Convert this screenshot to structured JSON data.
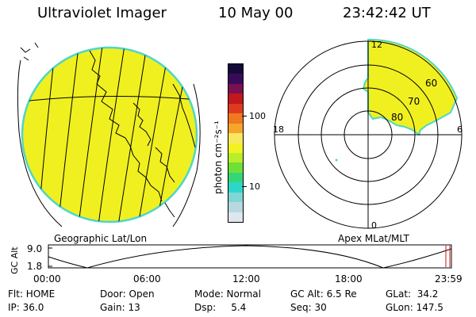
{
  "header": {
    "title": "Ultraviolet Imager",
    "date": "10 May 00",
    "time": "23:42:42 UT"
  },
  "colorbar": {
    "unit_label": "photon cm⁻²s⁻¹",
    "tick_100": "100",
    "tick_10": "10",
    "colors": [
      "#dfe7ee",
      "#b8d8e0",
      "#7fd6d6",
      "#2cd6c8",
      "#35d67a",
      "#6fe035",
      "#b8ee2a",
      "#f2f222",
      "#f7e860",
      "#f7a52a",
      "#f0781e",
      "#e03a1e",
      "#c0181e",
      "#7a1050",
      "#3a0a5a",
      "#140a3a"
    ]
  },
  "polar": {
    "labels": {
      "top": "12",
      "bottom": "0",
      "left": "18",
      "right": "6",
      "r60": "60",
      "r70": "70",
      "r80": "80"
    }
  },
  "maps": {
    "geo_label": "Geographic Lat/Lon",
    "apex_label": "Apex MLat/MLT",
    "fill_color": "#f0f020",
    "edge_color": "#4fd6c8"
  },
  "timeline": {
    "ylabel": "GC Alt",
    "ytick_top": "9.0",
    "ytick_bottom": "1.8",
    "xticks": [
      "00:00",
      "06:00",
      "12:00",
      "18:00",
      "23:59"
    ],
    "marker_color": "#d01010"
  },
  "status": {
    "filter": "Flt: HOME",
    "ip": "IP: 36.0",
    "door": "Door: Open",
    "gain": "Gain: 13",
    "mode": "Mode: Normal",
    "dsp": "Dsp:     5.4",
    "gc_alt": "GC Alt: 6.5 Re",
    "seq": "Seq: 30",
    "glat": "GLat:  34.2",
    "glon": "GLon: 147.5"
  }
}
